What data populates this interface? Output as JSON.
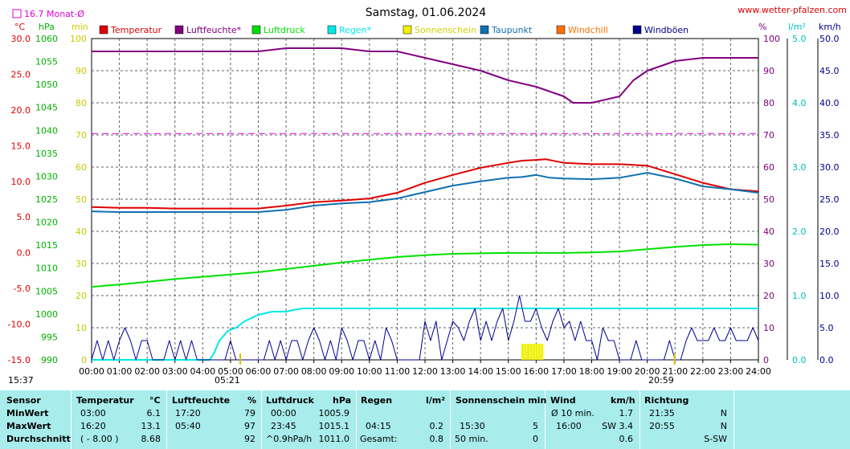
{
  "header": {
    "title": "Samstag, 01.06.2024",
    "site": "www.wetter-pfalzen.com",
    "avg_label": "16.7 Monat-Ø"
  },
  "axis_units": {
    "temp": "°C",
    "press": "hPa",
    "min": "min",
    "pct": "%",
    "rain": "l/m²",
    "wind": "km/h"
  },
  "legend": [
    {
      "label": "Temperatur",
      "color": "#e00000"
    },
    {
      "label": "Luftfeuchte*",
      "color": "#800080"
    },
    {
      "label": "Luftdruck",
      "color": "#00e000"
    },
    {
      "label": "Regen*",
      "color": "#00e8e8"
    },
    {
      "label": "Sonnenschein",
      "color": "#f0f000"
    },
    {
      "label": "Taupunkt",
      "color": "#1070b0"
    },
    {
      "label": "Windchill",
      "color": "#ff7000"
    },
    {
      "label": "Windböen",
      "color": "#000090"
    }
  ],
  "sun": {
    "rise": "05:21",
    "set": "20:59"
  },
  "current_time": "15:37",
  "chart_data": {
    "type": "line",
    "x_ticks": [
      "00:00",
      "01:00",
      "02:00",
      "03:00",
      "04:00",
      "05:00",
      "06:00",
      "07:00",
      "08:00",
      "09:00",
      "10:00",
      "11:00",
      "12:00",
      "13:00",
      "14:00",
      "15:00",
      "16:00",
      "17:00",
      "18:00",
      "19:00",
      "20:00",
      "21:00",
      "22:00",
      "23:00",
      "24:00"
    ],
    "axes": {
      "temp_C": {
        "range": [
          -15,
          30
        ],
        "ticks": [
          "30.0",
          "25.0",
          "20.0",
          "15.0",
          "10.0",
          "5.0",
          "0.0",
          "-5.0",
          "-10.0",
          "-15.0"
        ]
      },
      "pressure_hPa": {
        "range": [
          990,
          1060
        ],
        "ticks": [
          "1060",
          "1055",
          "1050",
          "1045",
          "1040",
          "1035",
          "1030",
          "1025",
          "1020",
          "1015",
          "1010",
          "1005",
          "1000",
          "995",
          "990"
        ]
      },
      "minutes": {
        "range": [
          0,
          100
        ],
        "ticks": [
          "100",
          "90",
          "80",
          "70",
          "60",
          "50",
          "40",
          "30",
          "20",
          "10",
          "0"
        ]
      },
      "percent": {
        "range": [
          0,
          100
        ],
        "ticks": [
          "100",
          "90",
          "80",
          "70",
          "60",
          "50",
          "40",
          "30",
          "20",
          "10",
          "0"
        ]
      },
      "rain_lm2": {
        "range": [
          0,
          5
        ],
        "ticks": [
          "5.0",
          "4.0",
          "3.0",
          "2.0",
          "1.0",
          "0.0"
        ]
      },
      "wind_kmh": {
        "range": [
          0,
          50
        ],
        "ticks": [
          "50.0",
          "45.0",
          "40.0",
          "35.0",
          "30.0",
          "25.0",
          "20.0",
          "15.0",
          "10.0",
          "5.0",
          "0.0"
        ]
      }
    },
    "reference_line": {
      "label": "16.7 Monat-Ø",
      "value_C": 16.7
    },
    "series": [
      {
        "name": "Temperatur",
        "axis": "temp_C",
        "x": [
          0,
          1,
          2,
          3,
          4,
          5,
          6,
          7,
          8,
          9,
          10,
          11,
          12,
          13,
          14,
          15,
          15.5,
          16,
          16.33,
          17,
          18,
          19,
          20,
          21,
          22,
          23,
          24
        ],
        "y": [
          6.4,
          6.3,
          6.3,
          6.2,
          6.2,
          6.2,
          6.2,
          6.6,
          7.1,
          7.3,
          7.6,
          8.4,
          9.8,
          10.9,
          11.9,
          12.6,
          12.9,
          13.0,
          13.1,
          12.6,
          12.4,
          12.4,
          12.2,
          11.0,
          9.8,
          8.9,
          8.6
        ]
      },
      {
        "name": "Taupunkt",
        "axis": "temp_C",
        "x": [
          0,
          1,
          2,
          3,
          4,
          5,
          6,
          7,
          8,
          9,
          10,
          11,
          12,
          13,
          14,
          15,
          15.5,
          16,
          16.5,
          17,
          18,
          19,
          20,
          21,
          22,
          23,
          24
        ],
        "y": [
          5.8,
          5.7,
          5.7,
          5.7,
          5.7,
          5.7,
          5.7,
          6.0,
          6.6,
          6.9,
          7.1,
          7.6,
          8.5,
          9.4,
          10.0,
          10.5,
          10.6,
          10.9,
          10.5,
          10.4,
          10.3,
          10.5,
          11.2,
          10.4,
          9.3,
          8.9,
          8.4
        ]
      },
      {
        "name": "Luftfeuchte*",
        "axis": "percent",
        "x": [
          0,
          1,
          2,
          3,
          4,
          5,
          6,
          7,
          8,
          9,
          10,
          11,
          12,
          13,
          14,
          15,
          16,
          17,
          17.33,
          18,
          19,
          19.5,
          20,
          21,
          22,
          23,
          24
        ],
        "y": [
          96,
          96,
          96,
          96,
          96,
          96,
          96,
          97,
          97,
          97,
          96,
          96,
          94,
          92,
          90,
          87,
          85,
          82,
          80,
          80,
          82,
          87,
          90,
          93,
          94,
          94,
          94
        ]
      },
      {
        "name": "Luftdruck",
        "axis": "pressure_hPa",
        "x": [
          0,
          1,
          2,
          3,
          4,
          5,
          6,
          7,
          8,
          9,
          10,
          11,
          12,
          13,
          14,
          15,
          16,
          17,
          18,
          19,
          20,
          21,
          22,
          23,
          24
        ],
        "y": [
          1005.9,
          1006.4,
          1007.0,
          1007.6,
          1008.1,
          1008.6,
          1009.1,
          1009.8,
          1010.5,
          1011.2,
          1011.8,
          1012.4,
          1012.8,
          1013.1,
          1013.2,
          1013.3,
          1013.3,
          1013.3,
          1013.4,
          1013.6,
          1014.1,
          1014.6,
          1015.0,
          1015.2,
          1015.1
        ]
      },
      {
        "name": "Regen*",
        "axis": "rain_lm2",
        "x": [
          0,
          4.25,
          4.4,
          4.6,
          4.9,
          5.2,
          5.5,
          6.0,
          6.5,
          7.0,
          7.3,
          7.6,
          8.0,
          12,
          16,
          20,
          24
        ],
        "y": [
          0,
          0,
          0.1,
          0.3,
          0.45,
          0.5,
          0.6,
          0.7,
          0.75,
          0.75,
          0.78,
          0.8,
          0.8,
          0.8,
          0.8,
          0.8,
          0.8
        ]
      },
      {
        "name": "Windböen",
        "axis": "wind_kmh",
        "x": [
          0,
          0.2,
          0.4,
          0.6,
          0.8,
          1.0,
          1.2,
          1.4,
          1.6,
          1.8,
          2.0,
          2.2,
          2.4,
          2.6,
          2.8,
          3.0,
          3.2,
          3.4,
          3.6,
          3.8,
          4.0,
          4.2,
          4.4,
          4.6,
          4.8,
          5.0,
          5.2,
          5.4,
          5.6,
          5.8,
          6.0,
          6.2,
          6.4,
          6.6,
          6.8,
          7.0,
          7.2,
          7.4,
          7.6,
          7.8,
          8.0,
          8.2,
          8.4,
          8.6,
          8.8,
          9.0,
          9.2,
          9.4,
          9.6,
          9.8,
          10.0,
          10.2,
          10.4,
          10.6,
          10.8,
          11.0,
          11.2,
          11.4,
          11.6,
          11.8,
          12.0,
          12.2,
          12.4,
          12.6,
          12.8,
          13.0,
          13.2,
          13.4,
          13.6,
          13.8,
          14.0,
          14.2,
          14.4,
          14.6,
          14.8,
          15.0,
          15.2,
          15.4,
          15.6,
          15.8,
          16.0,
          16.2,
          16.4,
          16.6,
          16.8,
          17.0,
          17.2,
          17.4,
          17.6,
          17.8,
          18.0,
          18.2,
          18.4,
          18.6,
          18.8,
          19.0,
          19.2,
          19.4,
          19.6,
          19.8,
          20.0,
          20.2,
          20.4,
          20.6,
          20.8,
          21.0,
          21.2,
          21.4,
          21.6,
          21.8,
          22.0,
          22.2,
          22.4,
          22.6,
          22.8,
          23.0,
          23.2,
          23.4,
          23.6,
          23.8,
          24.0
        ],
        "y": [
          0,
          3,
          0,
          3,
          0,
          3,
          5,
          3,
          0,
          3,
          3,
          0,
          0,
          0,
          3,
          0,
          3,
          0,
          3,
          0,
          0,
          0,
          0,
          0,
          0,
          3,
          0,
          0,
          0,
          0,
          0,
          0,
          3,
          0,
          3,
          0,
          3,
          3,
          0,
          3,
          5,
          3,
          0,
          3,
          0,
          5,
          3,
          0,
          3,
          3,
          0,
          3,
          0,
          5,
          3,
          0,
          0,
          0,
          0,
          0,
          6,
          3,
          6,
          0,
          3,
          6,
          5,
          3,
          6,
          8,
          3,
          6,
          3,
          6,
          8,
          3,
          6,
          10,
          6,
          6,
          8,
          5,
          3,
          6,
          8,
          5,
          6,
          3,
          6,
          3,
          3,
          0,
          5,
          3,
          3,
          0,
          0,
          0,
          3,
          0,
          0,
          0,
          0,
          0,
          3,
          0,
          0,
          3,
          5,
          3,
          3,
          3,
          5,
          3,
          3,
          5,
          3,
          3,
          3,
          5,
          3
        ]
      },
      {
        "name": "Sonnenschein",
        "axis": "minutes",
        "x": [
          15.5,
          15.6,
          15.7,
          15.8,
          15.9,
          16.0,
          16.1,
          16.2
        ],
        "y": [
          5,
          5,
          5,
          5,
          5,
          5,
          5,
          5
        ]
      }
    ],
    "extra_marks": {
      "luftfeuchte_ref_pct": 70
    }
  },
  "table": {
    "headers": [
      {
        "label": "Sensor",
        "unit": ""
      },
      {
        "label": "Temperatur",
        "unit": "°C"
      },
      {
        "label": "Luftfeuchte",
        "unit": "%"
      },
      {
        "label": "Luftdruck",
        "unit": "hPa"
      },
      {
        "label": "Regen",
        "unit": "l/m²"
      },
      {
        "label": "Sonnenschein min",
        "unit": ""
      },
      {
        "label": "Wind",
        "unit": "km/h"
      },
      {
        "label": "Richtung",
        "unit": ""
      }
    ],
    "rows": [
      {
        "label": "MinWert",
        "temp_t": "03:00",
        "temp_v": "6.1",
        "hum_t": "17:20",
        "hum_v": "79",
        "press_t": "00:00",
        "press_v": "1005.9",
        "rain_t": "",
        "rain_v": "",
        "sun_t": "",
        "sun_v": "",
        "wind_t": "Ø 10 min.",
        "wind_v": "1.7",
        "dir_t": "21:35",
        "dir_v": "N"
      },
      {
        "label": "MaxWert",
        "temp_t": "16:20",
        "temp_v": "13.1",
        "hum_t": "05:40",
        "hum_v": "97",
        "press_t": "23:45",
        "press_v": "1015.1",
        "rain_t": "04:15",
        "rain_v": "0.2",
        "sun_t": "15:30",
        "sun_v": "5",
        "wind_t": "16:00",
        "wind_v": "SW 3.4",
        "dir_t": "20:55",
        "dir_v": "N"
      },
      {
        "label": "Durchschnitt",
        "temp_t": "( - 8.00 )",
        "temp_v": "8.68",
        "hum_t": "",
        "hum_v": "92",
        "press_t": "^0.9hPa/h",
        "press_v": "1011.0",
        "rain_t": "Gesamt:",
        "rain_v": "0.8",
        "sun_t": "50 min.",
        "sun_v": "0",
        "wind_t": "",
        "wind_v": "0.6",
        "dir_t": "",
        "dir_v": "S-SW"
      }
    ]
  }
}
